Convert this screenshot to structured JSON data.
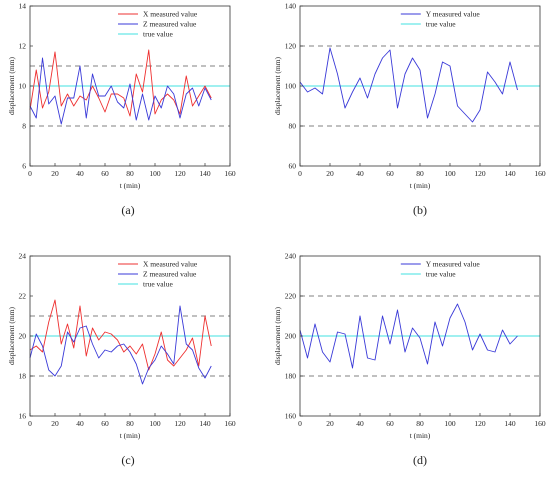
{
  "colors": {
    "x_series": "#ee3030",
    "y_series": "#3a3ad8",
    "z_series": "#3a3ad8",
    "true_value": "#40e0e0",
    "threshold": "#808080",
    "axis": "#333333"
  },
  "chart_data": [
    {
      "panel_label": "(a)",
      "type": "line",
      "xlabel": "t (min)",
      "ylabel": "displacement (mm)",
      "xlim": [
        0,
        160
      ],
      "ylim": [
        6,
        14
      ],
      "xticks": [
        "0",
        "20",
        "40",
        "60",
        "80",
        "100",
        "120",
        "140",
        "160"
      ],
      "yticks": [
        "6",
        "8",
        "10",
        "12",
        "14"
      ],
      "grid": false,
      "legend_position": "top-right",
      "x": [
        0,
        5,
        10,
        15,
        20,
        25,
        30,
        35,
        40,
        45,
        50,
        55,
        60,
        65,
        70,
        75,
        80,
        85,
        90,
        95,
        100,
        105,
        110,
        115,
        120,
        125,
        130,
        135,
        140,
        145
      ],
      "series": [
        {
          "name": "X measured value",
          "color_key": "x_series",
          "values": [
            8.8,
            10.8,
            8.9,
            9.7,
            11.7,
            9.0,
            9.6,
            9.0,
            9.5,
            9.3,
            10.0,
            9.4,
            8.7,
            9.6,
            9.6,
            9.4,
            8.5,
            10.6,
            9.7,
            11.8,
            8.6,
            9.3,
            9.6,
            9.3,
            8.6,
            10.5,
            9.0,
            9.5,
            10.0,
            9.4
          ]
        },
        {
          "name": "Z measured value",
          "color_key": "z_series",
          "values": [
            9.0,
            8.4,
            11.4,
            9.1,
            9.5,
            8.1,
            9.4,
            9.4,
            11.0,
            8.4,
            10.6,
            9.5,
            9.5,
            10.0,
            9.2,
            8.9,
            10.1,
            8.3,
            9.6,
            8.3,
            9.5,
            8.9,
            10.0,
            9.6,
            8.4,
            9.6,
            9.9,
            9.0,
            9.9,
            9.3
          ]
        }
      ],
      "reference_lines": [
        {
          "name": "true value",
          "value": 10,
          "color_key": "true_value",
          "style": "solid"
        },
        {
          "name": "",
          "value": 11,
          "color_key": "threshold",
          "style": "dashed"
        },
        {
          "name": "",
          "value": 8,
          "color_key": "threshold",
          "style": "dashed"
        }
      ]
    },
    {
      "panel_label": "(b)",
      "type": "line",
      "xlabel": "t (min)",
      "ylabel": "displacement (mm)",
      "xlim": [
        0,
        160
      ],
      "ylim": [
        60,
        140
      ],
      "xticks": [
        "0",
        "20",
        "40",
        "60",
        "80",
        "100",
        "120",
        "140",
        "160"
      ],
      "yticks": [
        "60",
        "80",
        "100",
        "120",
        "140"
      ],
      "grid": false,
      "legend_position": "top-right",
      "x": [
        0,
        5,
        10,
        15,
        20,
        25,
        30,
        35,
        40,
        45,
        50,
        55,
        60,
        65,
        70,
        75,
        80,
        85,
        90,
        95,
        100,
        105,
        110,
        115,
        120,
        125,
        130,
        135,
        140,
        145
      ],
      "series": [
        {
          "name": "Y measured value",
          "color_key": "y_series",
          "values": [
            102,
            97,
            99,
            96,
            119,
            106,
            89,
            97,
            104,
            94,
            106,
            114,
            118,
            89,
            106,
            114,
            108,
            84,
            96,
            112,
            110,
            90,
            86,
            82,
            88,
            107,
            102,
            96,
            112,
            98
          ]
        }
      ],
      "reference_lines": [
        {
          "name": "true value",
          "value": 100,
          "color_key": "true_value",
          "style": "solid"
        },
        {
          "name": "",
          "value": 120,
          "color_key": "threshold",
          "style": "dashed"
        },
        {
          "name": "",
          "value": 80,
          "color_key": "threshold",
          "style": "dashed"
        }
      ]
    },
    {
      "panel_label": "(c)",
      "type": "line",
      "xlabel": "t (min)",
      "ylabel": "displacement (mm)",
      "xlim": [
        0,
        160
      ],
      "ylim": [
        16,
        24
      ],
      "xticks": [
        "0",
        "20",
        "40",
        "60",
        "80",
        "100",
        "120",
        "140",
        "160"
      ],
      "yticks": [
        "16",
        "18",
        "20",
        "22",
        "24"
      ],
      "grid": false,
      "legend_position": "top-right",
      "x": [
        0,
        5,
        10,
        15,
        20,
        25,
        30,
        35,
        40,
        45,
        50,
        55,
        60,
        65,
        70,
        75,
        80,
        85,
        90,
        95,
        100,
        105,
        110,
        115,
        120,
        125,
        130,
        135,
        140,
        145
      ],
      "series": [
        {
          "name": "X measured value",
          "color_key": "x_series",
          "values": [
            19.3,
            19.5,
            19.2,
            20.7,
            21.8,
            19.6,
            20.6,
            19.4,
            21.5,
            19.0,
            20.4,
            19.8,
            20.2,
            20.1,
            19.8,
            19.2,
            19.5,
            19.1,
            19.6,
            18.3,
            19.1,
            20.2,
            18.8,
            18.5,
            18.9,
            19.3,
            19.9,
            18.5,
            21.0,
            19.5
          ]
        },
        {
          "name": "Z measured value",
          "color_key": "z_series",
          "values": [
            18.9,
            20.1,
            19.5,
            18.3,
            18.0,
            18.5,
            20.2,
            19.7,
            20.4,
            20.5,
            19.6,
            18.9,
            19.3,
            19.2,
            19.5,
            19.6,
            19.2,
            18.6,
            17.6,
            18.4,
            18.8,
            19.5,
            19.1,
            18.6,
            21.5,
            19.6,
            19.3,
            18.4,
            17.9,
            18.5
          ]
        }
      ],
      "reference_lines": [
        {
          "name": "true value",
          "value": 20,
          "color_key": "true_value",
          "style": "solid"
        },
        {
          "name": "",
          "value": 21,
          "color_key": "threshold",
          "style": "dashed"
        },
        {
          "name": "",
          "value": 18,
          "color_key": "threshold",
          "style": "dashed"
        }
      ]
    },
    {
      "panel_label": "(d)",
      "type": "line",
      "xlabel": "t (min)",
      "ylabel": "displacement (mm)",
      "xlim": [
        0,
        160
      ],
      "ylim": [
        160,
        240
      ],
      "xticks": [
        "0",
        "20",
        "40",
        "60",
        "80",
        "100",
        "120",
        "140",
        "160"
      ],
      "yticks": [
        "160",
        "180",
        "200",
        "220",
        "240"
      ],
      "grid": false,
      "legend_position": "top-right",
      "x": [
        0,
        5,
        10,
        15,
        20,
        25,
        30,
        35,
        40,
        45,
        50,
        55,
        60,
        65,
        70,
        75,
        80,
        85,
        90,
        95,
        100,
        105,
        110,
        115,
        120,
        125,
        130,
        135,
        140,
        145
      ],
      "series": [
        {
          "name": "Y measured value",
          "color_key": "y_series",
          "values": [
            203,
            189,
            206,
            192,
            187,
            202,
            201,
            184,
            210,
            189,
            188,
            210,
            196,
            213,
            192,
            204,
            199,
            186,
            207,
            195,
            209,
            216,
            207,
            193,
            201,
            193,
            192,
            203,
            196,
            200
          ]
        }
      ],
      "reference_lines": [
        {
          "name": "true value",
          "value": 200,
          "color_key": "true_value",
          "style": "solid"
        },
        {
          "name": "",
          "value": 220,
          "color_key": "threshold",
          "style": "dashed"
        },
        {
          "name": "",
          "value": 180,
          "color_key": "threshold",
          "style": "dashed"
        }
      ]
    }
  ]
}
